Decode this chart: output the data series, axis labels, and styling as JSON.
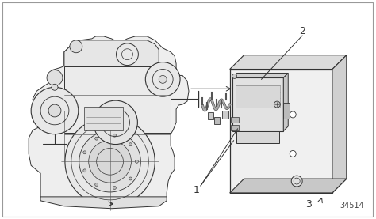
{
  "bg_color": "#ffffff",
  "border_color": "#aaaaaa",
  "line_color": "#333333",
  "label_1": "1",
  "label_2": "2",
  "label_3": "3",
  "ref_number": "34514",
  "fig_width": 4.74,
  "fig_height": 2.77,
  "dpi": 100,
  "engine_color": "#f0f0f0",
  "plate_face_color": "#f2f2f2",
  "plate_side_color": "#d8d8d8",
  "sensor_color": "#e0e0e0"
}
